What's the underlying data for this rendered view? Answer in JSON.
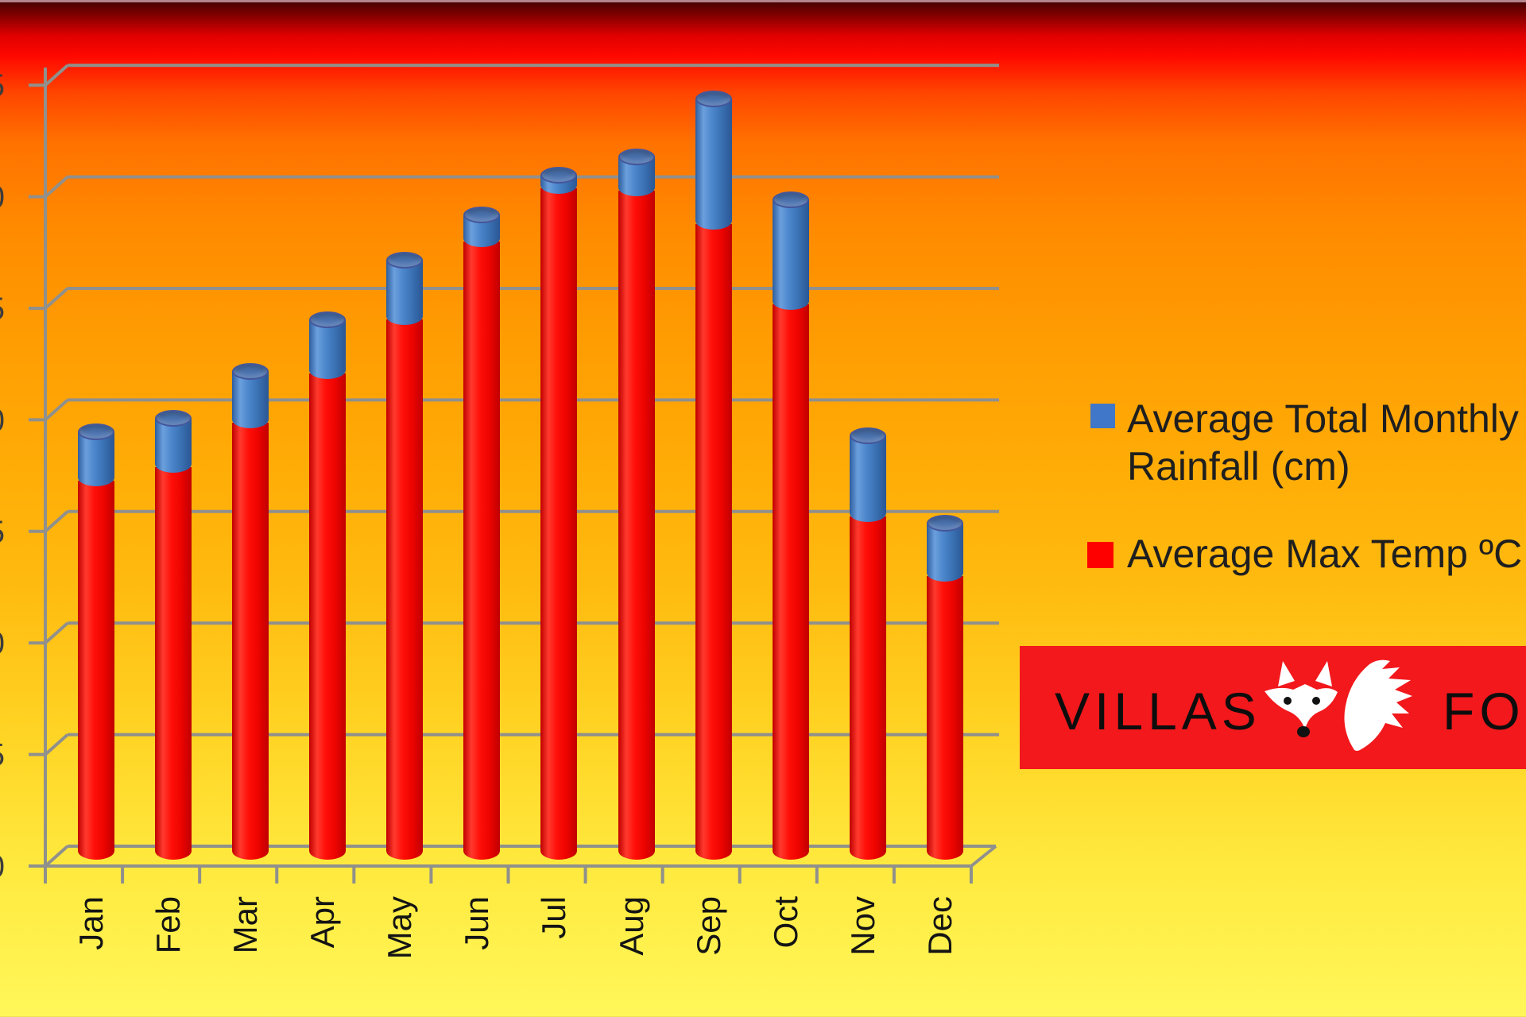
{
  "chart_data": {
    "type": "bar",
    "subtype": "3d-cylinder-stacked",
    "categories": [
      "Jan",
      "Feb",
      "Mar",
      "Apr",
      "May",
      "Jun",
      "Jul",
      "Aug",
      "Sep",
      "Oct",
      "Nov",
      "Dec"
    ],
    "series": [
      {
        "name": "Average Max Temp ºC",
        "color": "#fb0300",
        "values": [
          17.0,
          17.6,
          19.6,
          21.8,
          24.2,
          27.7,
          30.1,
          30.0,
          28.5,
          24.9,
          15.4,
          12.7
        ]
      },
      {
        "name": "Average Total Monthly Rainfall (cm)",
        "color": "#3f79c4",
        "values": [
          2.2,
          2.2,
          2.3,
          2.4,
          2.7,
          1.2,
          0.6,
          1.5,
          5.6,
          4.7,
          3.6,
          2.4
        ]
      }
    ],
    "ylim": [
      0,
      35
    ],
    "gridline_step": 5,
    "grid": true,
    "y_axis_labels_clipped_offscreen": true,
    "legend_position": "right"
  },
  "legend": {
    "items": [
      {
        "swatch_color": "#4077c8",
        "line1": "Average Total Monthly",
        "line2": "Rainfall (cm)"
      },
      {
        "swatch_color": "#fe0000",
        "line1": "Average Max Temp ºC",
        "line2": ""
      }
    ]
  },
  "logo": {
    "word_left": "VILLAS",
    "word_right": "FOX",
    "banner_color": "#f2181c",
    "icon": "fox-face-and-tail-icon"
  },
  "colors": {
    "axis_gray": "#90908c",
    "bar_red": "#fb0300",
    "bar_blue": "#3f79c4",
    "label_black": "#141414"
  }
}
